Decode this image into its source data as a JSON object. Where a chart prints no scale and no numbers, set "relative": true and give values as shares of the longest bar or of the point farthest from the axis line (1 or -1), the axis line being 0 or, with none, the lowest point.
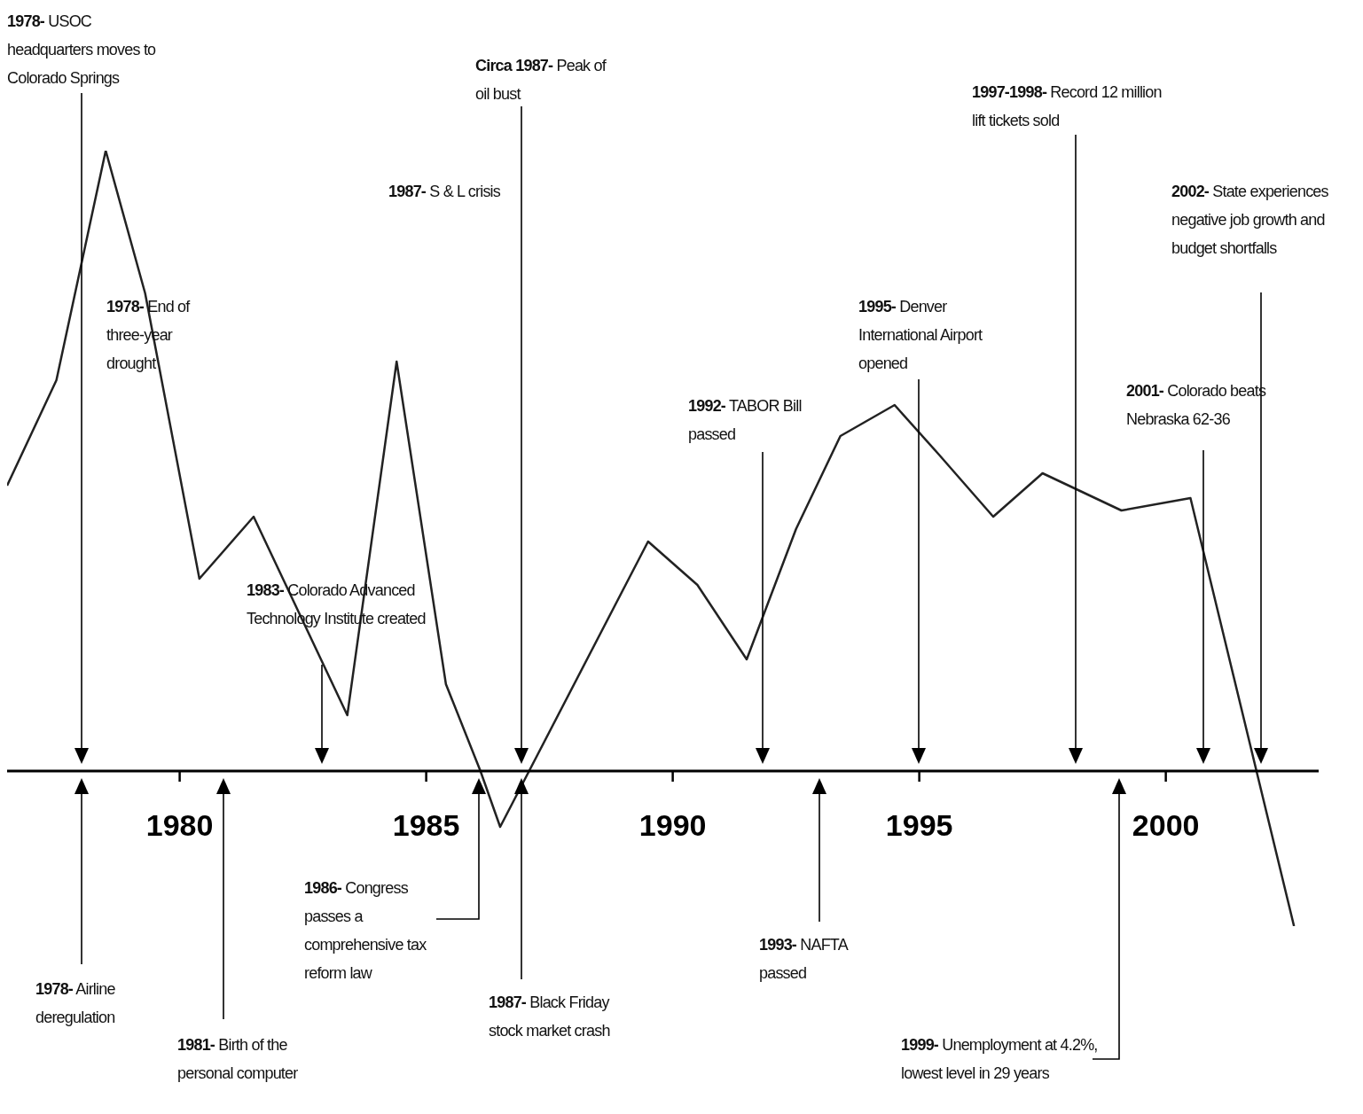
{
  "chart_data": {
    "type": "line",
    "relative": true,
    "color": "#222222",
    "x": [
      1976.5,
      1977.5,
      1978.5,
      1979.3,
      1980.4,
      1981.5,
      1983.4,
      1984.4,
      1985.4,
      1986.1,
      1986.5,
      1989.5,
      1990.5,
      1991.5,
      1992.5,
      1993.4,
      1994.5,
      1995.4,
      1996.5,
      1997.5,
      1999.1,
      2000.5,
      2002.6
    ],
    "values": [
      0.46,
      0.63,
      1.0,
      0.77,
      0.31,
      0.41,
      0.09,
      0.66,
      0.14,
      0.0,
      -0.09,
      0.37,
      0.3,
      0.18,
      0.39,
      0.54,
      0.59,
      0.51,
      0.41,
      0.48,
      0.42,
      0.44,
      -0.25
    ],
    "xlim": [
      1976.5,
      2003.1
    ],
    "xticks": [
      1980,
      1985,
      1990,
      1995,
      2000
    ],
    "annotations": [
      "1978- USOC headquarters moves to Colorado Springs",
      "1978- End of three-year drought",
      "Circa 1987- Peak of oil bust",
      "1987- S & L crisis",
      "1997-1998- Record 12 million lift tickets sold",
      "2002- State experiences negative job growth and budget shortfalls",
      "1983- Colorado Advanced Technology Institute created",
      "1992- TABOR Bill passed",
      "1995- Denver International Airport opened",
      "2001- Colorado beats Nebraska 62-36",
      "1978- Airline deregulation",
      "1981- Birth of the personal computer",
      "1986- Congress passes a comprehensive tax reform law",
      "1987- Black Friday stock market crash",
      "1993- NAFTA passed",
      "1999- Unemployment at 4.2%, lowest level in 29 years"
    ]
  }
}
